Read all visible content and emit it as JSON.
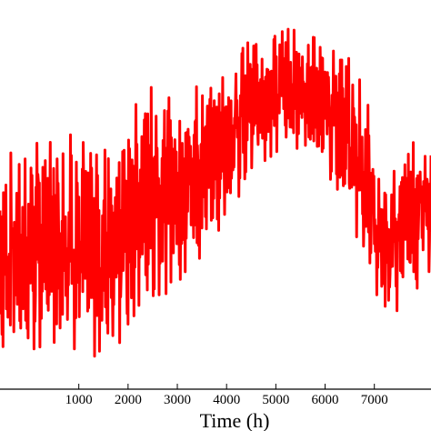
{
  "chart_data": {
    "type": "line",
    "title": "",
    "xlabel": "Time (h)",
    "ylabel": "",
    "xlim": [
      -600,
      8150
    ],
    "ylim": [
      0,
      1
    ],
    "x_ticks": [
      1000,
      2000,
      3000,
      4000,
      5000,
      6000,
      7000
    ],
    "x_tick_labels": [
      "1000",
      "2000",
      "3000",
      "4000",
      "5000",
      "6000",
      "7000"
    ],
    "grid": false,
    "legend": "none",
    "series": [
      {
        "color": "#ff0000",
        "envelope": {
          "x": [
            -600,
            0,
            500,
            1000,
            1500,
            2000,
            2500,
            3000,
            3500,
            4000,
            4500,
            5000,
            5500,
            6000,
            6500,
            6800,
            7000,
            7300,
            7600,
            8150
          ],
          "upper": [
            0.6,
            0.62,
            0.66,
            0.65,
            0.62,
            0.71,
            0.78,
            0.76,
            0.8,
            0.83,
            0.9,
            0.93,
            0.92,
            0.89,
            0.87,
            0.8,
            0.6,
            0.53,
            0.62,
            0.66
          ],
          "lower": [
            0.08,
            0.1,
            0.12,
            0.1,
            0.06,
            0.15,
            0.24,
            0.25,
            0.34,
            0.44,
            0.55,
            0.61,
            0.62,
            0.57,
            0.43,
            0.33,
            0.24,
            0.18,
            0.22,
            0.3
          ]
        },
        "sample_step_h": 10
      }
    ]
  }
}
